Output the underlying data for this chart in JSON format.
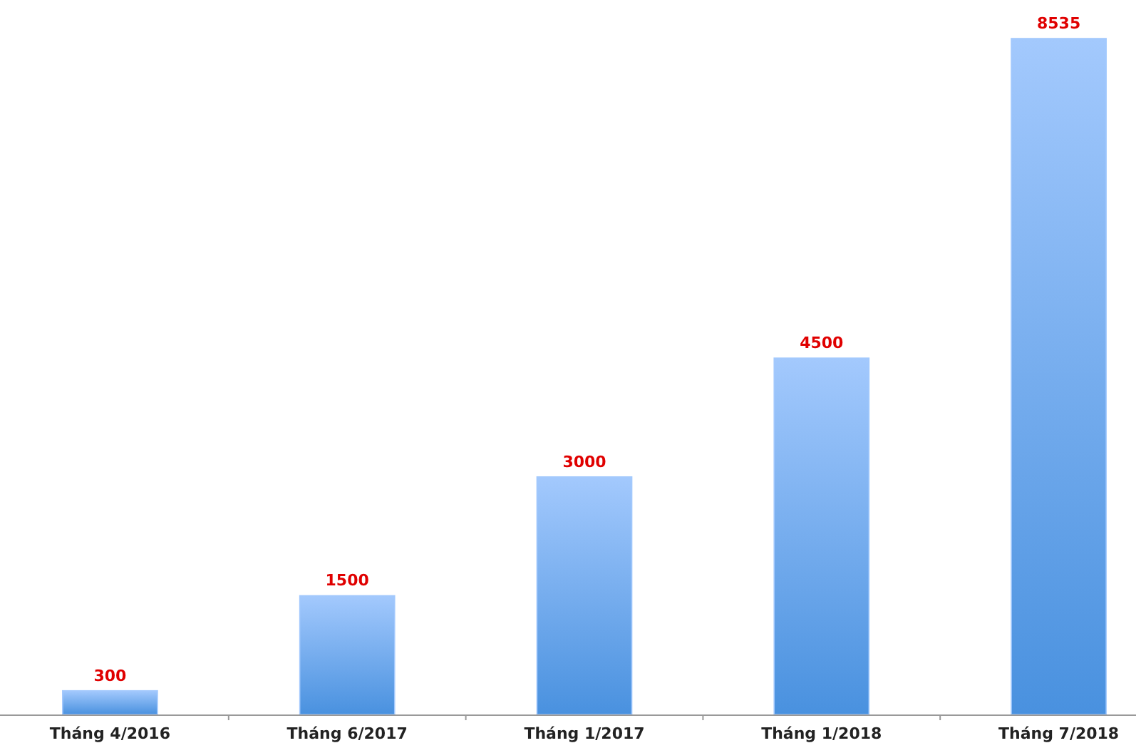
{
  "chart_data": {
    "type": "bar",
    "categories": [
      "Tháng 4/2016",
      "Tháng 6/2017",
      "Tháng 1/2017",
      "Tháng 1/2018",
      "Tháng 7/2018"
    ],
    "values": [
      300,
      1500,
      3000,
      4500,
      8535
    ],
    "color": "#a3c9fd",
    "data_labels": true
  }
}
